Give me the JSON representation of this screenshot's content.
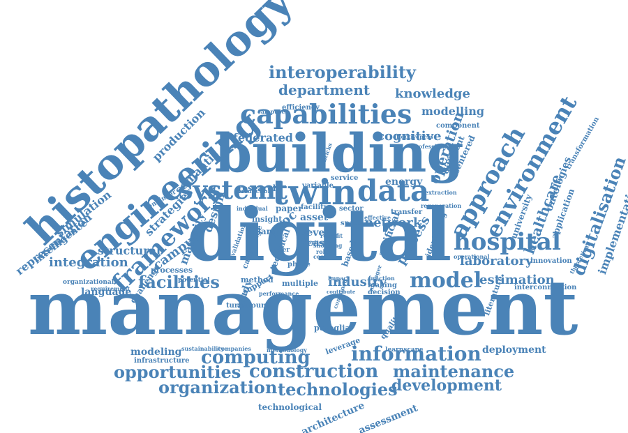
{
  "colors": {
    "word": "#4a83b7",
    "background": "#ffffff"
  },
  "words": [
    "management",
    "digital",
    "building",
    "histopathology",
    "engineering",
    "twin",
    "systemt",
    "data",
    "capabilities",
    "hospital",
    "approach",
    "environment",
    "framework",
    "facilities",
    "model",
    "information",
    "computing",
    "construction",
    "maintenance",
    "opportunities",
    "organization",
    "technologies",
    "development",
    "interoperability",
    "department",
    "knowledge",
    "modelling",
    "laboratory",
    "estimation",
    "healthcare",
    "digitalisation",
    "implementation",
    "cognitive",
    "operation",
    "federated",
    "integration",
    "representation",
    "simulation",
    "intelligence",
    "production",
    "strategies",
    "semantic",
    "campus",
    "design",
    "maturity",
    "structural",
    "language",
    "process",
    "industry",
    "network",
    "energy",
    "study",
    "proc",
    "multiple",
    "processes",
    "modeling",
    "infrastructure",
    "deployment",
    "architecture",
    "assessment",
    "technological",
    "poveglia",
    "quality",
    "university",
    "ontologies",
    "application",
    "innovation",
    "interconnection",
    "transformation",
    "literature",
    "centered",
    "different",
    "component",
    "efficiency",
    "campuses",
    "service",
    "variable",
    "level",
    "case",
    "asset",
    "paper",
    "facility",
    "island",
    "sector",
    "space",
    "transfer",
    "artificial",
    "based",
    "research",
    "insight",
    "leverage",
    "learnscape",
    "sustainability",
    "companies",
    "methodology",
    "method",
    "support",
    "challenge",
    "organizational",
    "potential",
    "engineer",
    "cambridge",
    "validation",
    "effective",
    "effectiveness",
    "professional",
    "technical",
    "identifying",
    "operational",
    "function",
    "making",
    "decision",
    "retrofit",
    "role",
    "cost",
    "phase",
    "impact",
    "requirement",
    "turnaround",
    "production",
    "regeneration",
    "extraction",
    "theoretical",
    "bricks",
    "performance",
    "manager",
    "contribute",
    "individual",
    "adoption",
    "contained",
    "shopping",
    "play",
    "user",
    "zero",
    "image"
  ]
}
